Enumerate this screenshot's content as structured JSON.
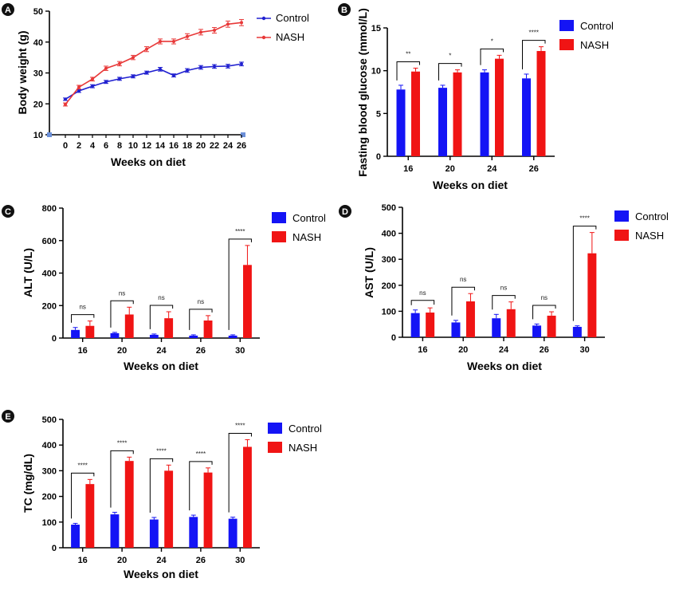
{
  "colors": {
    "control": "#1414f5",
    "nash": "#f01414",
    "control_line": "#2020d0",
    "nash_line": "#e83838"
  },
  "chart_data": [
    {
      "id": "A",
      "type": "line",
      "panel_label": "A",
      "xlabel": "Weeks on diet",
      "ylabel": "Body weight (g)",
      "x": [
        0,
        2,
        4,
        6,
        8,
        10,
        12,
        14,
        16,
        18,
        20,
        22,
        24,
        26
      ],
      "xticks": [
        "0",
        "2",
        "4",
        "6",
        "8",
        "10",
        "12",
        "14",
        "16",
        "18",
        "20",
        "22",
        "24",
        "26"
      ],
      "yticks": [
        "10",
        "20",
        "30",
        "40",
        "50"
      ],
      "ylim": [
        10,
        50
      ],
      "legend": [
        "Control",
        "NASH"
      ],
      "series": [
        {
          "name": "Control",
          "values": [
            21.5,
            24.2,
            25.7,
            27.1,
            28.1,
            28.9,
            30.1,
            31.2,
            29.2,
            30.8,
            31.8,
            32.1,
            32.2,
            32.9
          ],
          "err": [
            0.4,
            0.5,
            0.5,
            0.5,
            0.5,
            0.5,
            0.5,
            0.6,
            0.5,
            0.6,
            0.6,
            0.6,
            0.6,
            0.6
          ]
        },
        {
          "name": "NASH",
          "values": [
            19.8,
            25.4,
            28.0,
            31.5,
            33.0,
            35.0,
            37.7,
            40.2,
            40.2,
            41.8,
            43.2,
            43.8,
            45.8,
            46.3
          ],
          "err": [
            0.5,
            0.6,
            0.6,
            0.7,
            0.7,
            0.7,
            0.8,
            0.8,
            0.8,
            0.9,
            0.9,
            0.9,
            1.0,
            1.0
          ]
        }
      ]
    },
    {
      "id": "B",
      "type": "bar",
      "panel_label": "B",
      "xlabel": "Weeks on diet",
      "ylabel": "Fasting blood glucose  (mmol/L)",
      "categories": [
        "16",
        "20",
        "24",
        "26"
      ],
      "yticks": [
        "0",
        "5",
        "10",
        "15"
      ],
      "ylim": [
        0,
        15
      ],
      "legend": [
        "Control",
        "NASH"
      ],
      "series": [
        {
          "name": "Control",
          "values": [
            7.8,
            8.0,
            9.8,
            9.1
          ],
          "err": [
            0.5,
            0.3,
            0.3,
            0.5
          ]
        },
        {
          "name": "NASH",
          "values": [
            9.9,
            9.8,
            11.4,
            12.3
          ],
          "err": [
            0.4,
            0.3,
            0.4,
            0.5
          ]
        }
      ],
      "significance": [
        "**",
        "*",
        "*",
        "****"
      ]
    },
    {
      "id": "C",
      "type": "bar",
      "panel_label": "C",
      "xlabel": "Weeks on diet",
      "ylabel": "ALT (U/L)",
      "categories": [
        "16",
        "20",
        "24",
        "26",
        "30"
      ],
      "yticks": [
        "0",
        "200",
        "400",
        "600",
        "800"
      ],
      "ylim": [
        0,
        800
      ],
      "legend": [
        "Control",
        "NASH"
      ],
      "series": [
        {
          "name": "Control",
          "values": [
            50,
            30,
            20,
            15,
            15
          ],
          "err": [
            15,
            5,
            5,
            5,
            5
          ]
        },
        {
          "name": "NASH",
          "values": [
            75,
            145,
            122,
            108,
            450
          ],
          "err": [
            30,
            45,
            40,
            30,
            120
          ]
        }
      ],
      "significance": [
        "ns",
        "ns",
        "ns",
        "ns",
        "****"
      ]
    },
    {
      "id": "D",
      "type": "bar",
      "panel_label": "D",
      "xlabel": "Weeks on diet",
      "ylabel": "AST (U/L)",
      "categories": [
        "16",
        "20",
        "24",
        "26",
        "30"
      ],
      "yticks": [
        "0",
        "100",
        "200",
        "300",
        "400",
        "500"
      ],
      "ylim": [
        0,
        500
      ],
      "legend": [
        "Control",
        "NASH"
      ],
      "series": [
        {
          "name": "Control",
          "values": [
            93,
            57,
            73,
            45,
            40
          ],
          "err": [
            12,
            8,
            15,
            6,
            4
          ]
        },
        {
          "name": "NASH",
          "values": [
            95,
            138,
            108,
            83,
            323
          ],
          "err": [
            18,
            30,
            28,
            15,
            80
          ]
        }
      ],
      "significance": [
        "ns",
        "ns",
        "ns",
        "ns",
        "****"
      ]
    },
    {
      "id": "E",
      "type": "bar",
      "panel_label": "E",
      "xlabel": "Weeks on diet",
      "ylabel": "TC (mg/dL)",
      "categories": [
        "16",
        "20",
        "24",
        "26",
        "30"
      ],
      "yticks": [
        "0",
        "100",
        "200",
        "300",
        "400",
        "500"
      ],
      "ylim": [
        0,
        500
      ],
      "legend": [
        "Control",
        "NASH"
      ],
      "series": [
        {
          "name": "Control",
          "values": [
            90,
            130,
            110,
            120,
            113
          ],
          "err": [
            5,
            8,
            8,
            7,
            6
          ]
        },
        {
          "name": "NASH",
          "values": [
            248,
            338,
            300,
            293,
            393
          ],
          "err": [
            18,
            15,
            22,
            18,
            28
          ]
        }
      ],
      "significance": [
        "****",
        "****",
        "****",
        "****",
        "****"
      ]
    }
  ]
}
